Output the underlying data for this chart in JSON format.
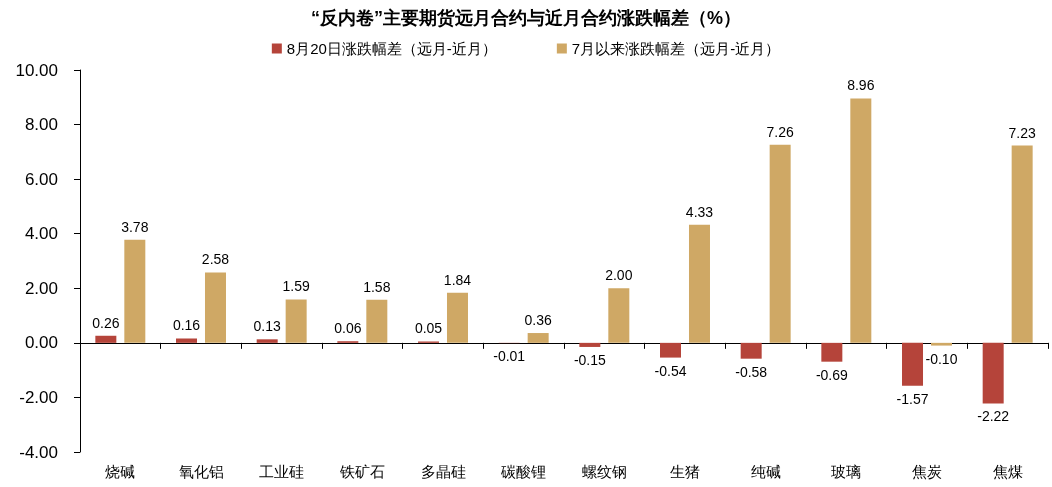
{
  "chart_data": {
    "type": "bar",
    "title": "“反内卷”主要期货远月合约与近月合约涨跌幅差（%）",
    "categories": [
      "烧碱",
      "氧化铝",
      "工业硅",
      "铁矿石",
      "多晶硅",
      "碳酸锂",
      "螺纹钢",
      "生猪",
      "纯碱",
      "玻璃",
      "焦炭",
      "焦煤"
    ],
    "series": [
      {
        "name": "8月20日涨跌幅差（远月-近月）",
        "color": "#b5443a",
        "values": [
          0.26,
          0.16,
          0.13,
          0.06,
          0.05,
          -0.01,
          -0.15,
          -0.54,
          -0.58,
          -0.69,
          -1.57,
          -2.22
        ],
        "value_labels": [
          "0.26",
          "0.16",
          "0.13",
          "0.06",
          "0.05",
          "-0.01",
          "-0.15",
          "-0.54",
          "-0.58",
          "-0.69",
          "-1.57",
          "-2.22"
        ]
      },
      {
        "name": "7月以来涨跌幅差（远月-近月）",
        "color": "#cfa865",
        "values": [
          3.78,
          2.58,
          1.59,
          1.58,
          1.84,
          0.36,
          2.0,
          4.33,
          7.26,
          8.96,
          -0.1,
          7.23
        ],
        "value_labels": [
          "3.78",
          "2.58",
          "1.59",
          "1.58",
          "1.84",
          "0.36",
          "2.00",
          "4.33",
          "7.26",
          "8.96",
          "-0.10",
          "7.23"
        ]
      }
    ],
    "ylim": [
      -4,
      10
    ],
    "yticks": [
      {
        "value": -4,
        "label": "-4.00"
      },
      {
        "value": -2,
        "label": "-2.00"
      },
      {
        "value": 0,
        "label": "0.00"
      },
      {
        "value": 2,
        "label": "2.00"
      },
      {
        "value": 4,
        "label": "4.00"
      },
      {
        "value": 6,
        "label": "6.00"
      },
      {
        "value": 8,
        "label": "8.00"
      },
      {
        "value": 10,
        "label": "10.00"
      }
    ],
    "legend": "top"
  }
}
